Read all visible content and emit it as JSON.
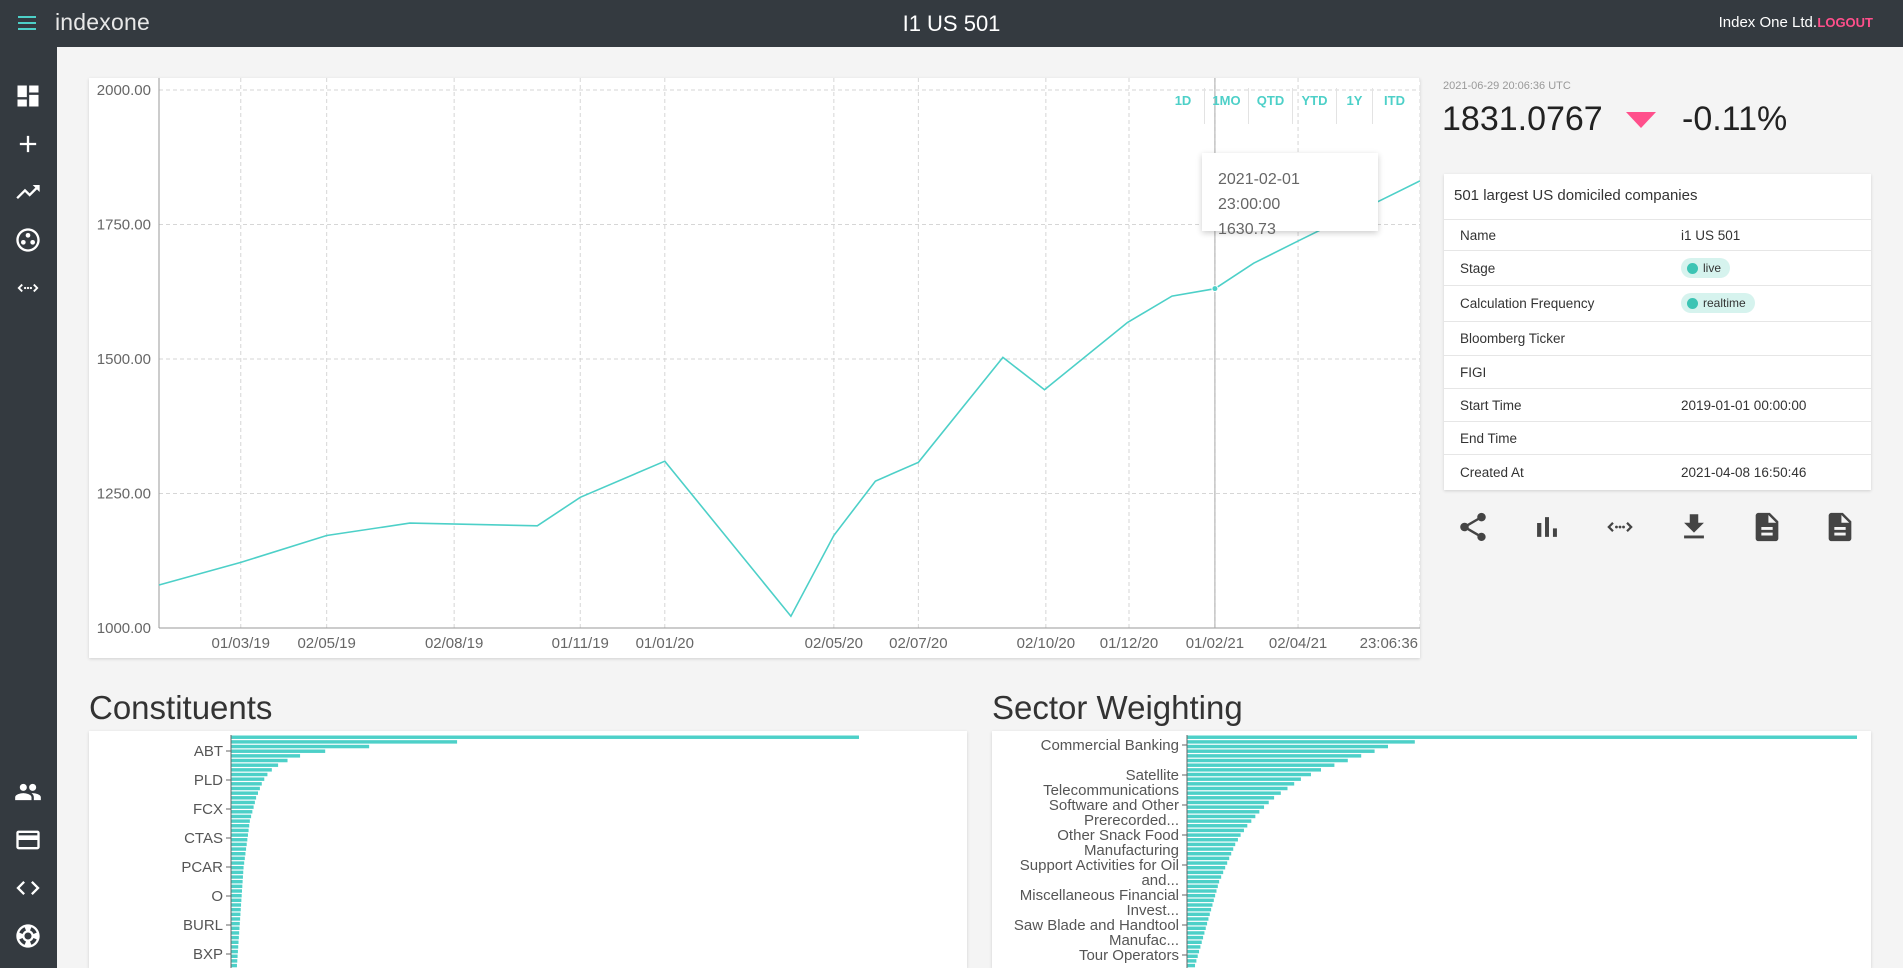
{
  "app": {
    "brand": "indexone",
    "title": "I1 US 501",
    "company": "Index One Ltd.",
    "logout_label": "LOGOUT",
    "accent": "#4dd0c8",
    "sidebar_bg": "#343a40",
    "logout_color": "#ff4f8b"
  },
  "sidebar": {
    "top_items": [
      {
        "icon": "dashboard-icon"
      },
      {
        "icon": "add-icon"
      },
      {
        "icon": "trending-up-icon"
      },
      {
        "icon": "group-work-icon"
      },
      {
        "icon": "api-icon"
      }
    ],
    "bottom_items": [
      {
        "icon": "people-icon"
      },
      {
        "icon": "credit-card-icon"
      },
      {
        "icon": "code-icon"
      },
      {
        "icon": "support-icon"
      }
    ]
  },
  "range_buttons": [
    "1D",
    "1MO",
    "QTD",
    "YTD",
    "1Y",
    "ITD"
  ],
  "tooltip": {
    "date": "2021-02-01 23:00:00",
    "value": "1630.73"
  },
  "quote": {
    "timestamp": "2021-06-29 20:06:36 UTC",
    "price": "1831.0767",
    "change": "-0.11%",
    "direction_icon": "arrow-drop-down-icon",
    "down_color": "#ff4f8b"
  },
  "info": {
    "description": "501 largest US domiciled companies",
    "rows": [
      {
        "label": "Name",
        "value": "i1 US 501",
        "chip": false
      },
      {
        "label": "Stage",
        "value": "live",
        "chip": true
      },
      {
        "label": "Calculation Frequency",
        "value": "realtime",
        "chip": true
      },
      {
        "label": "Bloomberg Ticker",
        "value": "",
        "chip": false
      },
      {
        "label": "FIGI",
        "value": "",
        "chip": false
      },
      {
        "label": "Start Time",
        "value": "2019-01-01 00:00:00",
        "chip": false
      },
      {
        "label": "End Time",
        "value": "",
        "chip": false
      },
      {
        "label": "Created At",
        "value": "2021-04-08 16:50:46",
        "chip": false
      }
    ]
  },
  "actions": [
    "share-icon",
    "bar-chart-icon",
    "api-icon",
    "download-icon",
    "document-icon",
    "document-alt-icon"
  ],
  "constituents": {
    "title": "Constituents",
    "labels": [
      "ABT",
      "PLD",
      "FCX",
      "CTAS",
      "PCAR",
      "O",
      "BURL",
      "BXP"
    ]
  },
  "sectors": {
    "title": "Sector Weighting",
    "labels": [
      [
        "Commercial Banking"
      ],
      [
        "Satellite",
        "Telecommunications"
      ],
      [
        "Software and Other",
        "Prerecorded..."
      ],
      [
        "Other Snack Food",
        "Manufacturing"
      ],
      [
        "Support Activities for Oil",
        "and..."
      ],
      [
        "Miscellaneous Financial",
        "Invest..."
      ],
      [
        "Saw Blade and Handtool",
        "Manufac..."
      ],
      [
        "Tour Operators"
      ]
    ]
  },
  "chart_data": {
    "type": "line",
    "series": [
      {
        "x": [
          "2019-01-01",
          "2019-03-01",
          "2019-05-02",
          "2019-07-01",
          "2019-10-01",
          "2019-11-01",
          "2020-01-01",
          "2020-04-01",
          "2020-05-02",
          "2020-06-01",
          "2020-07-02",
          "2020-09-01",
          "2020-10-01",
          "2020-11-30",
          "2021-01-01",
          "2021-02-01",
          "2021-03-01",
          "2021-04-01",
          "2021-06-29"
        ],
        "y": [
          1080,
          1122,
          1172,
          1195,
          1190,
          1243,
          1310,
          1022,
          1172,
          1273,
          1308,
          1503,
          1443,
          1568,
          1617,
          1630.73,
          1678,
          1718,
          1831.08
        ]
      }
    ],
    "x_tick_labels": [
      "01/03/19",
      "02/05/19",
      "02/08/19",
      "01/11/19",
      "01/01/20",
      "02/05/20",
      "02/07/20",
      "02/10/20",
      "01/12/20",
      "01/02/21",
      "02/04/21",
      "23:06:36"
    ],
    "y_tick_labels": [
      "2000.00",
      "1750.00",
      "1500.00",
      "1250.00",
      "1000.00"
    ],
    "ylim": [
      1000,
      2000
    ],
    "grid": true,
    "highlight_point": {
      "x": "2021-02-01",
      "y": 1630.73
    }
  },
  "constituent_weights": [
    100,
    36,
    22,
    15,
    11,
    9,
    7.5,
    6.5,
    5.8,
    5.3,
    4.9,
    4.6,
    4.3,
    4.0,
    3.8,
    3.6,
    3.4,
    3.2,
    3.0,
    2.9,
    2.8,
    2.7,
    2.6,
    2.5,
    2.4,
    2.3,
    2.2,
    2.1,
    2.0,
    1.95,
    1.9,
    1.85,
    1.8,
    1.75,
    1.7,
    1.65,
    1.6,
    1.55,
    1.5,
    1.45,
    1.4,
    1.35,
    1.3,
    1.25,
    1.2,
    1.15,
    1.1,
    1.05,
    1.0,
    0.95
  ],
  "sector_weights": [
    100,
    34,
    30,
    28,
    26,
    24,
    22,
    20,
    18.5,
    17,
    16,
    15,
    14,
    13,
    12.2,
    11.5,
    10.8,
    10.2,
    9.6,
    9.0,
    8.5,
    8.0,
    7.6,
    7.2,
    6.9,
    6.6,
    6.3,
    6.0,
    5.7,
    5.4,
    5.1,
    4.8,
    4.6,
    4.4,
    4.2,
    4.0,
    3.8,
    3.6,
    3.4,
    3.2,
    3.0,
    2.8,
    2.6,
    2.4,
    2.2,
    2.0,
    1.8,
    1.6,
    1.4,
    1.2
  ]
}
